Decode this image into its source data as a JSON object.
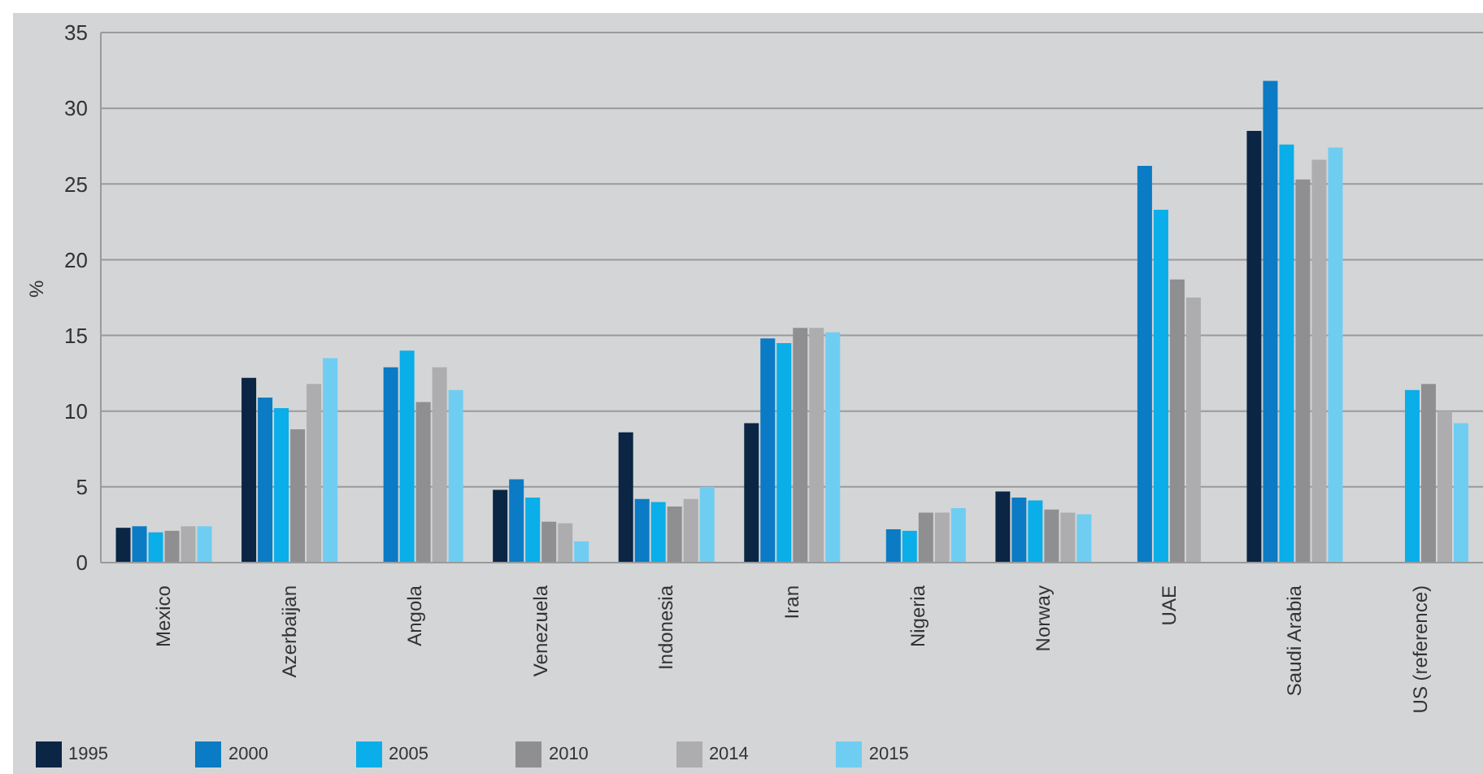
{
  "chart_data": {
    "type": "bar",
    "ylabel": "%",
    "categories": [
      "Mexico",
      "Azerbaijan",
      "Angola",
      "Venezuela",
      "Indonesia",
      "Iran",
      "Nigeria",
      "Norway",
      "UAE",
      "Saudi Arabia",
      "US (reference)"
    ],
    "series": [
      {
        "name": "1995",
        "color": "#0b2545",
        "values": [
          2.3,
          12.2,
          null,
          4.8,
          8.6,
          9.2,
          null,
          4.7,
          null,
          28.5,
          null
        ]
      },
      {
        "name": "2000",
        "color": "#0a7bc4",
        "values": [
          2.4,
          10.9,
          12.9,
          5.5,
          4.2,
          14.8,
          2.2,
          4.3,
          26.2,
          31.8,
          null
        ]
      },
      {
        "name": "2005",
        "color": "#0aaee8",
        "values": [
          2.0,
          10.2,
          14.0,
          4.3,
          4.0,
          14.5,
          2.1,
          4.1,
          23.3,
          27.6,
          11.4
        ]
      },
      {
        "name": "2010",
        "color": "#8f8f92",
        "values": [
          2.1,
          8.8,
          10.6,
          2.7,
          3.7,
          15.5,
          3.3,
          3.5,
          18.7,
          25.3,
          11.8
        ]
      },
      {
        "name": "2014",
        "color": "#adadb0",
        "values": [
          2.4,
          11.8,
          12.9,
          2.6,
          4.2,
          15.5,
          3.3,
          3.3,
          17.5,
          26.6,
          10.0
        ]
      },
      {
        "name": "2015",
        "color": "#6fcdf2",
        "values": [
          2.4,
          13.5,
          11.4,
          1.4,
          5.0,
          15.2,
          3.6,
          3.2,
          null,
          27.4,
          9.2
        ]
      }
    ],
    "ylim": [
      0,
      35
    ],
    "yticks": [
      0,
      5,
      10,
      15,
      20,
      25,
      30,
      35
    ],
    "grid": "y",
    "legend": "bottom left"
  }
}
